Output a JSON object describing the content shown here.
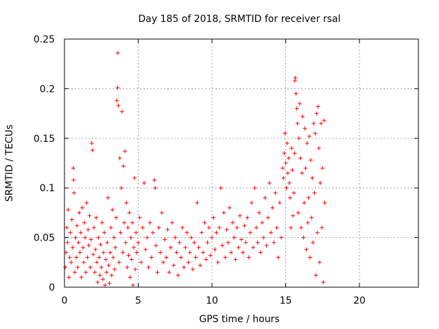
{
  "chart_data": {
    "type": "scatter",
    "title": "Day 185 of 2018, SRMTID for receiver rsal",
    "xlabel": "GPS time / hours",
    "ylabel": "SRMTID / TECUs",
    "xlim": [
      0,
      24
    ],
    "ylim": [
      0,
      0.25
    ],
    "x_ticks": [
      "0",
      "5",
      "10",
      "15",
      "20"
    ],
    "y_ticks": [
      "0",
      "0.05",
      "0.1",
      "0.15",
      "0.2",
      "0.25"
    ],
    "grid": true,
    "marker": "plus",
    "color": "#ff0000",
    "series": [
      {
        "points": [
          [
            0.05,
            0.02
          ],
          [
            0.1,
            0.035
          ],
          [
            0.15,
            0.06
          ],
          [
            0.2,
            0.045
          ],
          [
            0.25,
            0.078
          ],
          [
            0.3,
            0.01
          ],
          [
            0.35,
            0.03
          ],
          [
            0.4,
            0.055
          ],
          [
            0.45,
            0.025
          ],
          [
            0.5,
            0.068
          ],
          [
            0.55,
            0.04
          ],
          [
            0.6,
            0.12
          ],
          [
            0.62,
            0.108
          ],
          [
            0.65,
            0.095
          ],
          [
            0.7,
            0.015
          ],
          [
            0.75,
            0.05
          ],
          [
            0.8,
            0.03
          ],
          [
            0.85,
            0.062
          ],
          [
            0.9,
            0.02
          ],
          [
            0.95,
            0.045
          ],
          [
            1.0,
            0.075
          ],
          [
            1.05,
            0.035
          ],
          [
            1.1,
            0.055
          ],
          [
            1.15,
            0.01
          ],
          [
            1.2,
            0.08
          ],
          [
            1.25,
            0.04
          ],
          [
            1.3,
            0.025
          ],
          [
            1.35,
            0.065
          ],
          [
            1.4,
            0.05
          ],
          [
            1.45,
            0.015
          ],
          [
            1.5,
            0.085
          ],
          [
            1.55,
            0.03
          ],
          [
            1.6,
            0.058
          ],
          [
            1.65,
            0.042
          ],
          [
            1.7,
            0.072
          ],
          [
            1.75,
            0.02
          ],
          [
            1.8,
            0.048
          ],
          [
            1.85,
            0.145
          ],
          [
            1.9,
            0.138
          ],
          [
            1.95,
            0.033
          ],
          [
            2.0,
            0.06
          ],
          [
            2.05,
            0.015
          ],
          [
            2.1,
            0.038
          ],
          [
            2.15,
            0.07
          ],
          [
            2.2,
            0.025
          ],
          [
            2.25,
            0.005
          ],
          [
            2.3,
            0.05
          ],
          [
            2.35,
            0.03
          ],
          [
            2.4,
            0.012
          ],
          [
            2.45,
            0.043
          ],
          [
            2.5,
            0.02
          ],
          [
            2.55,
            0.065
          ],
          [
            2.6,
            0.008
          ],
          [
            2.65,
            0.035
          ],
          [
            2.7,
            0.055
          ],
          [
            2.75,
            0.002
          ],
          [
            2.8,
            0.028
          ],
          [
            2.85,
            0.015
          ],
          [
            2.9,
            0.045
          ],
          [
            2.95,
            0.09
          ],
          [
            3.0,
            0.022
          ],
          [
            3.05,
            0.004
          ],
          [
            3.1,
            0.035
          ],
          [
            3.15,
            0.06
          ],
          [
            3.2,
            0.012
          ],
          [
            3.25,
            0.078
          ],
          [
            3.3,
            0.03
          ],
          [
            3.35,
            0.05
          ],
          [
            3.4,
            0.018
          ],
          [
            3.45,
            0.04
          ],
          [
            3.5,
            0.07
          ],
          [
            3.55,
            0.188
          ],
          [
            3.6,
            0.201
          ],
          [
            3.62,
            0.236
          ],
          [
            3.65,
            0.183
          ],
          [
            3.7,
            0.025
          ],
          [
            3.75,
            0.13
          ],
          [
            3.8,
            0.055
          ],
          [
            3.85,
            0.1
          ],
          [
            3.9,
            0.177
          ],
          [
            3.95,
            0.035
          ],
          [
            4.0,
            0.122
          ],
          [
            4.05,
            0.065
          ],
          [
            4.1,
            0.137
          ],
          [
            4.15,
            0.045
          ],
          [
            4.2,
            0.085
          ],
          [
            4.25,
            0.02
          ],
          [
            4.3,
            0.06
          ],
          [
            4.35,
            0.032
          ],
          [
            4.4,
            0.075
          ],
          [
            4.45,
            0.01
          ],
          [
            4.5,
            0.05
          ],
          [
            4.55,
            0.028
          ],
          [
            4.6,
            0.065
          ],
          [
            4.65,
            0.002
          ],
          [
            4.7,
            0.04
          ],
          [
            4.75,
            0.11
          ],
          [
            4.8,
            0.018
          ],
          [
            4.85,
            0.055
          ],
          [
            4.9,
            0.035
          ],
          [
            5.0,
            0.045
          ],
          [
            5.1,
            0.07
          ],
          [
            5.2,
            0.025
          ],
          [
            5.3,
            0.06
          ],
          [
            5.4,
            0.105
          ],
          [
            5.5,
            0.038
          ],
          [
            5.6,
            0.05
          ],
          [
            5.7,
            0.02
          ],
          [
            5.8,
            0.065
          ],
          [
            5.9,
            0.03
          ],
          [
            6.0,
            0.055
          ],
          [
            6.1,
            0.108
          ],
          [
            6.15,
            0.1
          ],
          [
            6.2,
            0.042
          ],
          [
            6.3,
            0.015
          ],
          [
            6.4,
            0.06
          ],
          [
            6.5,
            0.035
          ],
          [
            6.6,
            0.075
          ],
          [
            6.7,
            0.025
          ],
          [
            6.8,
            0.048
          ],
          [
            6.9,
            0.03
          ],
          [
            7.0,
            0.058
          ],
          [
            7.1,
            0.015
          ],
          [
            7.2,
            0.04
          ],
          [
            7.3,
            0.065
          ],
          [
            7.4,
            0.022
          ],
          [
            7.5,
            0.05
          ],
          [
            7.6,
            0.035
          ],
          [
            7.7,
            0.012
          ],
          [
            7.8,
            0.045
          ],
          [
            7.9,
            0.03
          ],
          [
            8.0,
            0.06
          ],
          [
            8.1,
            0.02
          ],
          [
            8.2,
            0.04
          ],
          [
            8.3,
            0.055
          ],
          [
            8.4,
            0.025
          ],
          [
            8.5,
            0.035
          ],
          [
            8.6,
            0.05
          ],
          [
            8.7,
            0.018
          ],
          [
            8.8,
            0.045
          ],
          [
            8.9,
            0.03
          ],
          [
            9.0,
            0.085
          ],
          [
            9.1,
            0.04
          ],
          [
            9.2,
            0.022
          ],
          [
            9.3,
            0.055
          ],
          [
            9.4,
            0.035
          ],
          [
            9.5,
            0.065
          ],
          [
            9.6,
            0.028
          ],
          [
            9.7,
            0.045
          ],
          [
            9.8,
            0.06
          ],
          [
            9.9,
            0.032
          ],
          [
            10.0,
            0.05
          ],
          [
            10.1,
            0.07
          ],
          [
            10.2,
            0.038
          ],
          [
            10.3,
            0.055
          ],
          [
            10.4,
            0.025
          ],
          [
            10.5,
            0.06
          ],
          [
            10.6,
            0.1
          ],
          [
            10.7,
            0.042
          ],
          [
            10.8,
            0.075
          ],
          [
            10.9,
            0.03
          ],
          [
            11.0,
            0.058
          ],
          [
            11.1,
            0.045
          ],
          [
            11.2,
            0.08
          ],
          [
            11.3,
            0.035
          ],
          [
            11.4,
            0.065
          ],
          [
            11.5,
            0.05
          ],
          [
            11.6,
            0.028
          ],
          [
            11.7,
            0.06
          ],
          [
            11.8,
            0.04
          ],
          [
            11.9,
            0.072
          ],
          [
            12.0,
            0.048
          ],
          [
            12.1,
            0.035
          ],
          [
            12.2,
            0.062
          ],
          [
            12.3,
            0.045
          ],
          [
            12.4,
            0.07
          ],
          [
            12.5,
            0.03
          ],
          [
            12.6,
            0.055
          ],
          [
            12.7,
            0.085
          ],
          [
            12.8,
            0.04
          ],
          [
            12.9,
            0.1
          ],
          [
            13.0,
            0.06
          ],
          [
            13.1,
            0.045
          ],
          [
            13.2,
            0.075
          ],
          [
            13.3,
            0.035
          ],
          [
            13.4,
            0.065
          ],
          [
            13.5,
            0.05
          ],
          [
            13.6,
            0.09
          ],
          [
            13.7,
            0.042
          ],
          [
            13.8,
            0.07
          ],
          [
            13.9,
            0.105
          ],
          [
            14.0,
            0.055
          ],
          [
            14.1,
            0.08
          ],
          [
            14.2,
            0.045
          ],
          [
            14.3,
            0.095
          ],
          [
            14.4,
            0.06
          ],
          [
            14.5,
            0.03
          ],
          [
            14.6,
            0.085
          ],
          [
            14.7,
            0.05
          ],
          [
            14.8,
            0.12
          ],
          [
            14.85,
            0.11
          ],
          [
            14.9,
            0.135
          ],
          [
            14.95,
            0.155
          ],
          [
            15.0,
            0.125
          ],
          [
            15.05,
            0.1
          ],
          [
            15.1,
            0.145
          ],
          [
            15.15,
            0.115
          ],
          [
            15.2,
            0.13
          ],
          [
            15.25,
            0.105
          ],
          [
            15.3,
            0.09
          ],
          [
            15.35,
            0.06
          ],
          [
            15.4,
            0.14
          ],
          [
            15.45,
            0.118
          ],
          [
            15.5,
            0.072
          ],
          [
            15.55,
            0.095
          ],
          [
            15.6,
            0.135
          ],
          [
            15.62,
            0.208
          ],
          [
            15.65,
            0.211
          ],
          [
            15.7,
            0.195
          ],
          [
            15.75,
            0.18
          ],
          [
            15.8,
            0.165
          ],
          [
            15.85,
            0.075
          ],
          [
            15.9,
            0.15
          ],
          [
            15.95,
            0.185
          ],
          [
            16.0,
            0.13
          ],
          [
            16.05,
            0.06
          ],
          [
            16.1,
            0.115
          ],
          [
            16.15,
            0.172
          ],
          [
            16.2,
            0.05
          ],
          [
            16.25,
            0.085
          ],
          [
            16.3,
            0.16
          ],
          [
            16.35,
            0.12
          ],
          [
            16.4,
            0.038
          ],
          [
            16.45,
            0.145
          ],
          [
            16.5,
            0.065
          ],
          [
            16.55,
            0.09
          ],
          [
            16.6,
            0.152
          ],
          [
            16.65,
            0.03
          ],
          [
            16.7,
            0.128
          ],
          [
            16.75,
            0.07
          ],
          [
            16.8,
            0.11
          ],
          [
            16.85,
            0.045
          ],
          [
            16.9,
            0.165
          ],
          [
            16.95,
            0.095
          ],
          [
            17.0,
            0.155
          ],
          [
            17.05,
            0.012
          ],
          [
            17.1,
            0.175
          ],
          [
            17.15,
            0.055
          ],
          [
            17.2,
            0.182
          ],
          [
            17.25,
            0.14
          ],
          [
            17.3,
            0.025
          ],
          [
            17.35,
            0.105
          ],
          [
            17.4,
            0.165
          ],
          [
            17.45,
            0.06
          ],
          [
            17.5,
            0.12
          ],
          [
            17.55,
            0.005
          ],
          [
            17.6,
            0.168
          ],
          [
            17.65,
            0.085
          ]
        ]
      }
    ]
  }
}
